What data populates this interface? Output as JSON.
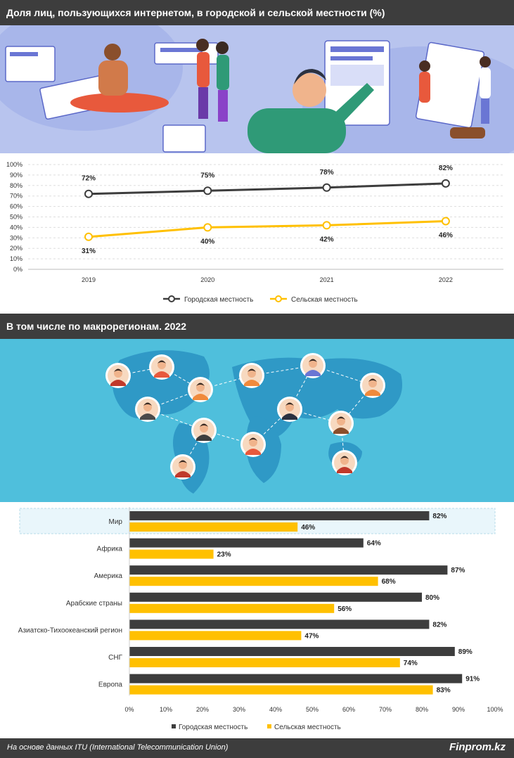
{
  "header1": "Доля лиц, пользующихся интернетом, в городской и сельской местности (%)",
  "header2": "В том числе по макрорегионам. 2022",
  "footer": {
    "source": "На основе данных ITU (International Telecommunication Union)",
    "brand": "Finprom.kz"
  },
  "colors": {
    "urban": "#3d3d3d",
    "rural": "#ffc000",
    "banner": "#3d3d3d",
    "world_bg": "#4fbfdc",
    "highlight": "#e9f6fb"
  },
  "chart_data": [
    {
      "type": "line",
      "x": [
        "2019",
        "2020",
        "2021",
        "2022"
      ],
      "series": [
        {
          "name": "Городская местность",
          "values": [
            72,
            75,
            78,
            82
          ],
          "labels": [
            "72%",
            "75%",
            "78%",
            "82%"
          ]
        },
        {
          "name": "Сельская местность",
          "values": [
            31,
            40,
            42,
            46
          ],
          "labels": [
            "31%",
            "40%",
            "42%",
            "46%"
          ]
        }
      ],
      "yticks": [
        "0%",
        "10%",
        "20%",
        "30%",
        "40%",
        "50%",
        "60%",
        "70%",
        "80%",
        "90%",
        "100%"
      ],
      "ylim": [
        0,
        100
      ],
      "grid": true,
      "legend": "bottom"
    },
    {
      "type": "bar",
      "orientation": "horizontal",
      "categories": [
        "Мир",
        "Африка",
        "Америка",
        "Арабские страны",
        "Азиатско-Тихоокеанский регион",
        "СНГ",
        "Европа"
      ],
      "series": [
        {
          "name": "Городская местность",
          "values": [
            82,
            64,
            87,
            80,
            82,
            89,
            91
          ],
          "labels": [
            "82%",
            "64%",
            "87%",
            "80%",
            "82%",
            "89%",
            "91%"
          ]
        },
        {
          "name": "Сельская местность",
          "values": [
            46,
            23,
            68,
            56,
            47,
            74,
            83
          ],
          "labels": [
            "46%",
            "23%",
            "68%",
            "56%",
            "47%",
            "74%",
            "83%"
          ]
        }
      ],
      "xticks": [
        "0%",
        "10%",
        "20%",
        "30%",
        "40%",
        "50%",
        "60%",
        "70%",
        "80%",
        "90%",
        "100%"
      ],
      "xlim": [
        0,
        100
      ],
      "highlighted_category": "Мир",
      "legend": "bottom"
    }
  ]
}
